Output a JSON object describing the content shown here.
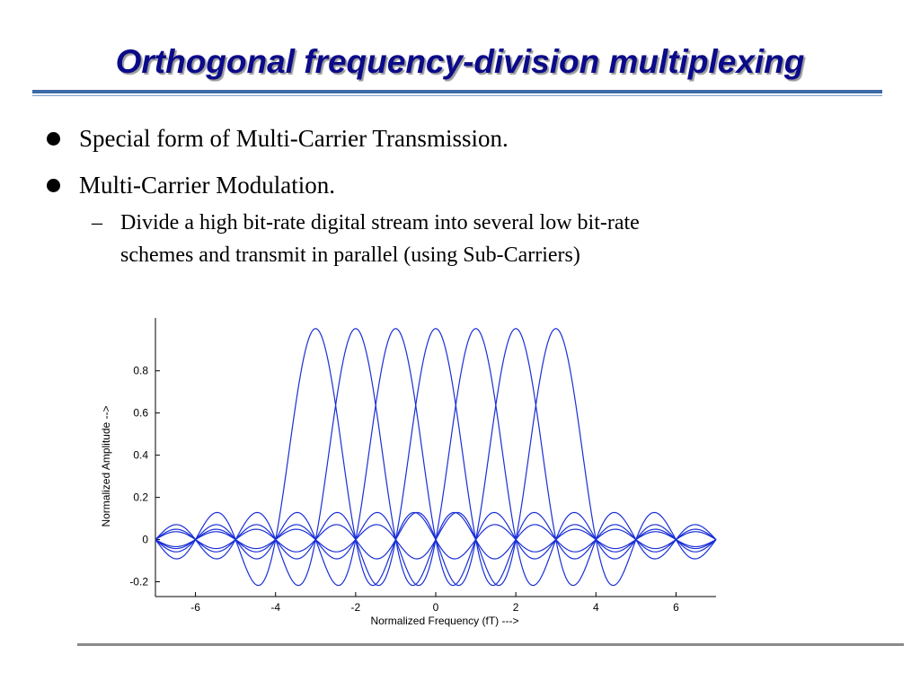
{
  "slide": {
    "title": "Orthogonal frequency-division multiplexing",
    "bullets": [
      "Special form of Multi-Carrier Transmission.",
      "Multi-Carrier Modulation."
    ],
    "sub_bullet": {
      "dash": "–",
      "line1": "Divide a high bit-rate digital stream into several low bit-rate",
      "line2": "schemes and transmit in parallel (using Sub-Carriers)"
    }
  },
  "colors": {
    "title": "#0b0b8a",
    "curves": "#1a2fd6",
    "rule": "#3e6aa8"
  },
  "chart_data": {
    "type": "line",
    "title": "",
    "xlabel": "Normalized Frequency (fT) --->",
    "ylabel": "Normalized Amplitude -->",
    "xlim": [
      -7,
      7
    ],
    "ylim": [
      -0.27,
      1.05
    ],
    "xticks": [
      -6,
      -4,
      -2,
      0,
      2,
      4,
      6
    ],
    "yticks": [
      -0.2,
      0,
      0.2,
      0.4,
      0.6,
      0.8
    ],
    "grid": false,
    "series": [
      {
        "function": "sinc(fT - k)",
        "center": -3
      },
      {
        "function": "sinc(fT - k)",
        "center": -2
      },
      {
        "function": "sinc(fT - k)",
        "center": -1
      },
      {
        "function": "sinc(fT - k)",
        "center": 0
      },
      {
        "function": "sinc(fT - k)",
        "center": 1
      },
      {
        "function": "sinc(fT - k)",
        "center": 2
      },
      {
        "function": "sinc(fT - k)",
        "center": 3
      }
    ]
  }
}
